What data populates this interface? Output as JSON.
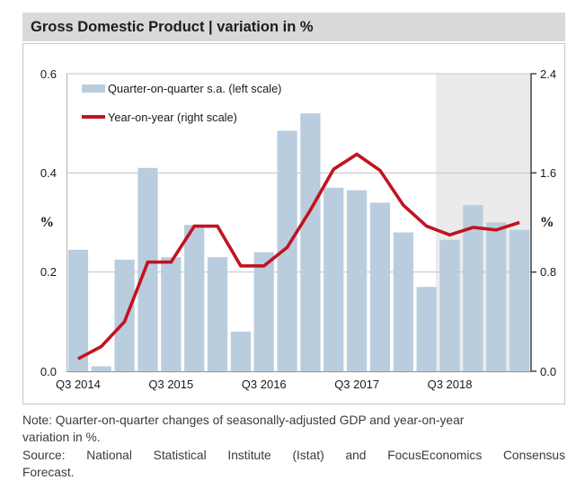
{
  "title": "Gross Domestic Product | variation in %",
  "legend": {
    "qoq_label": "Quarter-on-quarter s.a. (left scale)",
    "yoy_label": "Year-on-year (right scale)"
  },
  "axes": {
    "left_ticks": [
      "0.6",
      "0.4",
      "0.2",
      "0.0"
    ],
    "left_tick_values": [
      0.6,
      0.4,
      0.2,
      0.0
    ],
    "left_unit": "%",
    "right_ticks": [
      "2.4",
      "1.6",
      "0.8",
      "0.0"
    ],
    "right_tick_values": [
      2.4,
      1.6,
      0.8,
      0.0
    ],
    "right_unit": "%",
    "x_ticks": [
      "Q3 2014",
      "Q3 2015",
      "Q3 2016",
      "Q3 2017",
      "Q3 2018"
    ],
    "x_tick_indices": [
      0,
      4,
      8,
      12,
      16
    ]
  },
  "footer": {
    "note_line1": "Note: Quarter-on-quarter changes of seasonally-adjusted GDP and year-on-year",
    "note_line2": "variation in %.",
    "source_line1": "Source: National Statistical Institute (Istat) and FocusEconomics Consensus",
    "source_line2": "Forecast."
  },
  "colors": {
    "bar": "#b9cdde",
    "line": "#c01420",
    "forecast_band": "#ebebeb",
    "title_bg": "#d9d9d9",
    "gridline": "#c3c3c3",
    "left_axis": "#b4b4b4",
    "bottom_axis": "#9a9a9a",
    "axis_dark": "#3a3a3a"
  },
  "chart_data": {
    "type": "bar",
    "title": "Gross Domestic Product | variation in %",
    "categories": [
      "Q3 2014",
      "Q4 2014",
      "Q1 2015",
      "Q2 2015",
      "Q3 2015",
      "Q4 2015",
      "Q1 2016",
      "Q2 2016",
      "Q3 2016",
      "Q4 2016",
      "Q1 2017",
      "Q2 2017",
      "Q3 2017",
      "Q4 2017",
      "Q1 2018",
      "Q2 2018",
      "Q3 2018",
      "Q4 2018",
      "Q1 2019",
      "Q2 2019"
    ],
    "series": [
      {
        "name": "Quarter-on-quarter s.a.",
        "type": "bar",
        "axis": "left",
        "values": [
          0.245,
          0.01,
          0.225,
          0.41,
          0.23,
          0.295,
          0.23,
          0.08,
          0.24,
          0.485,
          0.52,
          0.37,
          0.365,
          0.34,
          0.28,
          0.17,
          0.265,
          0.335,
          0.3,
          0.285
        ]
      },
      {
        "name": "Year-on-year",
        "type": "line",
        "axis": "right",
        "values": [
          0.1,
          0.2,
          0.4,
          0.88,
          0.88,
          1.17,
          1.17,
          0.85,
          0.85,
          1.0,
          1.3,
          1.63,
          1.75,
          1.62,
          1.34,
          1.17,
          1.1,
          1.16,
          1.14,
          1.2
        ]
      }
    ],
    "left_ylim": [
      0,
      0.6
    ],
    "right_ylim": [
      0,
      2.4
    ],
    "grid": "horizontal",
    "legend_position": "top-left-inside",
    "forecast_shading_from": "Q3 2018"
  }
}
